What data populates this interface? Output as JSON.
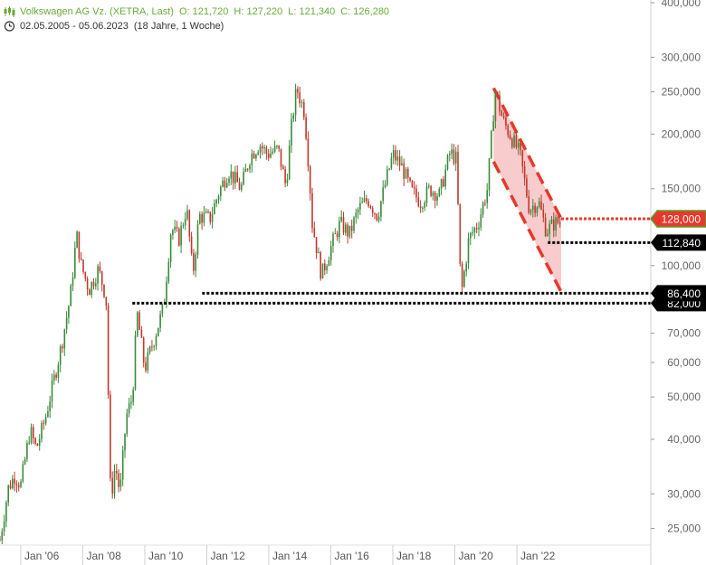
{
  "header": {
    "instrument": "Volkswagen AG Vz. (XETRA, Last)",
    "open": "O: 121,720",
    "high": "H: 127,220",
    "low": "L: 121,340",
    "close": "C: 126,280",
    "period": "02.05.2005 - 05.06.2023",
    "duration": "(18 Jahre, 1 Woche)",
    "icons": {
      "instrument": "chart-candles-icon",
      "period": "clock-icon"
    }
  },
  "colors": {
    "header_green": "#6aaa3a",
    "candle_up": "#3a8a3a",
    "candle_down": "#c0392b",
    "channel_fill": "#f7c3c3",
    "channel_line": "#e8382c",
    "support_line": "#000000",
    "resistance_line": "#e8382c",
    "resistance_label_bg": "#e8382c",
    "resistance_label_border": "#5aa02c",
    "support_label_bg": "#000000"
  },
  "chart_data": {
    "type": "line",
    "title": "Volkswagen AG Vz. (XETRA, Last)",
    "scale": "log",
    "ylim": [
      23000,
      400000
    ],
    "y_ticks": [
      {
        "value": 400000,
        "label": "400,000"
      },
      {
        "value": 300000,
        "label": "300,000"
      },
      {
        "value": 250000,
        "label": "250,000"
      },
      {
        "value": 200000,
        "label": "200,000"
      },
      {
        "value": 150000,
        "label": "150,000"
      },
      {
        "value": 100000,
        "label": "100,000"
      },
      {
        "value": 70000,
        "label": "70,000"
      },
      {
        "value": 60000,
        "label": "60,000"
      },
      {
        "value": 50000,
        "label": "50,000"
      },
      {
        "value": 40000,
        "label": "40,000"
      },
      {
        "value": 30000,
        "label": "30,000"
      },
      {
        "value": 25000,
        "label": "25,000"
      }
    ],
    "x_ticks": [
      {
        "date": 2006.0,
        "label": "Jan '06"
      },
      {
        "date": 2008.0,
        "label": "Jan '08"
      },
      {
        "date": 2010.0,
        "label": "Jan '10"
      },
      {
        "date": 2012.0,
        "label": "Jan '12"
      },
      {
        "date": 2014.0,
        "label": "Jan '14"
      },
      {
        "date": 2016.0,
        "label": "Jan '16"
      },
      {
        "date": 2018.0,
        "label": "Jan '18"
      },
      {
        "date": 2020.0,
        "label": "Jan '20"
      },
      {
        "date": 2022.0,
        "label": "Jan '22"
      }
    ],
    "xlim": [
      2005.33,
      2023.43
    ],
    "grid": false,
    "series": [
      {
        "values": [
          [
            2005.33,
            23500
          ],
          [
            2005.6,
            31000
          ],
          [
            2005.8,
            33000
          ],
          [
            2006.0,
            31500
          ],
          [
            2006.3,
            42000
          ],
          [
            2006.5,
            38000
          ],
          [
            2006.8,
            45000
          ],
          [
            2007.0,
            52000
          ],
          [
            2007.3,
            65000
          ],
          [
            2007.6,
            85000
          ],
          [
            2007.8,
            118000
          ],
          [
            2007.95,
            100000
          ],
          [
            2008.2,
            88000
          ],
          [
            2008.5,
            98000
          ],
          [
            2008.75,
            85000
          ],
          [
            2008.9,
            29000
          ],
          [
            2009.05,
            35000
          ],
          [
            2009.2,
            30000
          ],
          [
            2009.4,
            45000
          ],
          [
            2009.6,
            50000
          ],
          [
            2009.75,
            78000
          ],
          [
            2010.0,
            58000
          ],
          [
            2010.3,
            68000
          ],
          [
            2010.6,
            80000
          ],
          [
            2010.85,
            122000
          ],
          [
            2011.1,
            115000
          ],
          [
            2011.35,
            136000
          ],
          [
            2011.55,
            95000
          ],
          [
            2011.75,
            130000
          ],
          [
            2012.1,
            128000
          ],
          [
            2012.4,
            148000
          ],
          [
            2012.7,
            165000
          ],
          [
            2013.1,
            150000
          ],
          [
            2013.4,
            178000
          ],
          [
            2013.7,
            190000
          ],
          [
            2013.95,
            180000
          ],
          [
            2014.3,
            185000
          ],
          [
            2014.55,
            152000
          ],
          [
            2014.75,
            215000
          ],
          [
            2014.9,
            255000
          ],
          [
            2015.15,
            225000
          ],
          [
            2015.3,
            165000
          ],
          [
            2015.4,
            125000
          ],
          [
            2015.7,
            95000
          ],
          [
            2016.0,
            110000
          ],
          [
            2016.3,
            125000
          ],
          [
            2016.6,
            118000
          ],
          [
            2016.9,
            135000
          ],
          [
            2017.2,
            142000
          ],
          [
            2017.5,
            130000
          ],
          [
            2017.8,
            158000
          ],
          [
            2018.0,
            180000
          ],
          [
            2018.3,
            168000
          ],
          [
            2018.6,
            148000
          ],
          [
            2018.9,
            140000
          ],
          [
            2019.2,
            150000
          ],
          [
            2019.5,
            145000
          ],
          [
            2019.85,
            182000
          ],
          [
            2020.05,
            175000
          ],
          [
            2020.2,
            85000
          ],
          [
            2020.45,
            115000
          ],
          [
            2020.75,
            125000
          ],
          [
            2021.05,
            150000
          ],
          [
            2021.3,
            252000
          ],
          [
            2021.55,
            215000
          ],
          [
            2021.85,
            195000
          ],
          [
            2022.1,
            180000
          ],
          [
            2022.4,
            135000
          ],
          [
            2022.7,
            140000
          ],
          [
            2022.95,
            120000
          ],
          [
            2023.2,
            125000
          ],
          [
            2023.43,
            126280
          ]
        ]
      }
    ],
    "annotations": {
      "channel": {
        "upper": [
          [
            2021.25,
            255000
          ],
          [
            2023.43,
            128000
          ]
        ],
        "lower": [
          [
            2021.25,
            173000
          ],
          [
            2023.43,
            87000
          ]
        ]
      },
      "horizontal_lines": [
        {
          "value": 128000,
          "label": "128,000",
          "style": "resistance",
          "from_date": 2023.43
        },
        {
          "value": 112840,
          "label": "112,840",
          "style": "support",
          "from_date": 2023.0
        },
        {
          "value": 86400,
          "label": "86,400",
          "style": "support",
          "from_date": 2011.85
        },
        {
          "value": 82000,
          "label": "82,000",
          "style": "support",
          "from_date": 2009.6
        }
      ]
    }
  }
}
